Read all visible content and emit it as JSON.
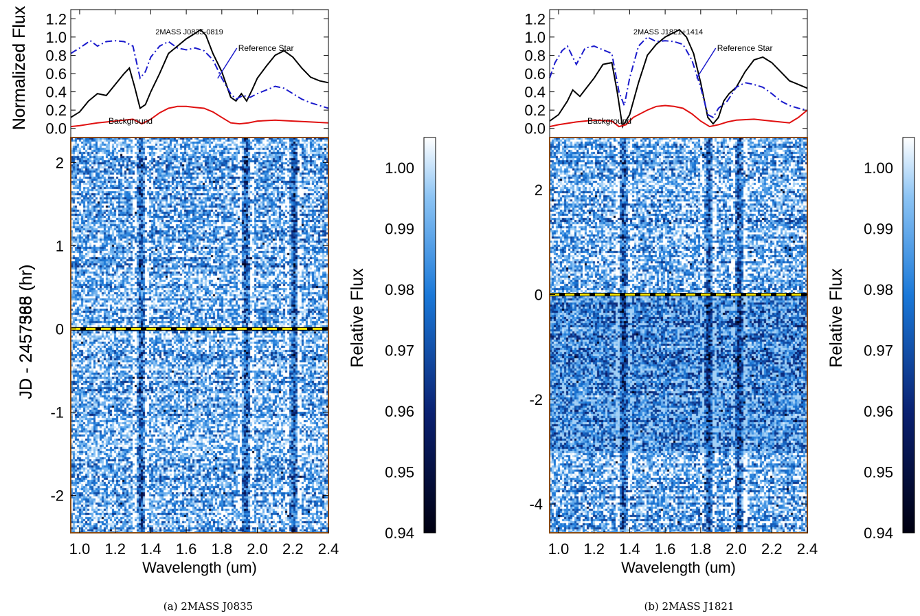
{
  "chart_data": [
    {
      "panel": "a",
      "type": "line",
      "caption": "(a) 2MASS J0835",
      "title": "2MASS J0835-0819",
      "ylabel": "Normalized Flux",
      "xlim": [
        0.95,
        2.4
      ],
      "ylim": [
        -0.1,
        1.3
      ],
      "yticks": [
        "0.0",
        "0.2",
        "0.4",
        "0.6",
        "0.8",
        "1.0",
        "1.2"
      ],
      "annotations": {
        "reference": "Reference Star",
        "background": "Background"
      },
      "colors": {
        "target": "#000000",
        "reference": "#1a1acc",
        "background": "#e01010"
      },
      "series": [
        {
          "role": "target",
          "style": "solid",
          "x": [
            0.95,
            1.0,
            1.05,
            1.1,
            1.15,
            1.2,
            1.25,
            1.28,
            1.31,
            1.34,
            1.37,
            1.4,
            1.45,
            1.5,
            1.55,
            1.6,
            1.65,
            1.68,
            1.71,
            1.75,
            1.8,
            1.85,
            1.88,
            1.91,
            1.94,
            1.97,
            2.0,
            2.05,
            2.1,
            2.15,
            2.2,
            2.25,
            2.3,
            2.35,
            2.4
          ],
          "y": [
            0.12,
            0.18,
            0.3,
            0.38,
            0.36,
            0.48,
            0.6,
            0.66,
            0.45,
            0.22,
            0.26,
            0.4,
            0.6,
            0.82,
            0.9,
            0.98,
            1.04,
            1.08,
            1.02,
            0.82,
            0.62,
            0.34,
            0.3,
            0.38,
            0.3,
            0.42,
            0.55,
            0.68,
            0.8,
            0.85,
            0.78,
            0.66,
            0.56,
            0.52,
            0.5
          ]
        },
        {
          "role": "reference",
          "style": "dashdot",
          "x": [
            0.95,
            1.0,
            1.03,
            1.06,
            1.1,
            1.15,
            1.2,
            1.25,
            1.3,
            1.34,
            1.37,
            1.4,
            1.45,
            1.5,
            1.55,
            1.6,
            1.65,
            1.7,
            1.75,
            1.8,
            1.85,
            1.88,
            1.92,
            1.96,
            2.0,
            2.05,
            2.1,
            2.15,
            2.2,
            2.25,
            2.3,
            2.35,
            2.4
          ],
          "y": [
            0.82,
            0.88,
            0.92,
            0.96,
            0.9,
            0.95,
            0.96,
            0.95,
            0.9,
            0.55,
            0.62,
            0.78,
            0.9,
            0.95,
            0.88,
            0.86,
            0.88,
            0.85,
            0.75,
            0.55,
            0.38,
            0.32,
            0.36,
            0.34,
            0.38,
            0.42,
            0.46,
            0.44,
            0.38,
            0.32,
            0.28,
            0.25,
            0.22
          ]
        },
        {
          "role": "background",
          "style": "solid",
          "x": [
            0.95,
            1.0,
            1.1,
            1.2,
            1.3,
            1.35,
            1.4,
            1.45,
            1.5,
            1.55,
            1.6,
            1.65,
            1.7,
            1.75,
            1.8,
            1.85,
            1.9,
            1.95,
            2.0,
            2.1,
            2.2,
            2.3,
            2.4
          ],
          "y": [
            0.02,
            0.03,
            0.06,
            0.08,
            0.1,
            0.05,
            0.1,
            0.17,
            0.22,
            0.24,
            0.24,
            0.23,
            0.22,
            0.18,
            0.12,
            0.06,
            0.05,
            0.06,
            0.08,
            0.09,
            0.08,
            0.07,
            0.06
          ]
        }
      ],
      "heatmap": {
        "xlabel": "Wavelength (um)",
        "ylabel": "JD -  2457388 (hr)",
        "xlim": [
          0.95,
          2.4
        ],
        "xticks": [
          "1.0",
          "1.2",
          "1.4",
          "1.6",
          "1.8",
          "2.0",
          "2.2",
          "2.4"
        ],
        "ylim": [
          -2.45,
          2.3
        ],
        "yticks": [
          "-2",
          "-1",
          "0",
          "1",
          "2"
        ],
        "zero_line": 0,
        "vmin": 0.94,
        "vmax": 1.005,
        "dark_bands": [
          1.34,
          1.93,
          2.2
        ],
        "colorbar_label": "Relative Flux",
        "colorbar_ticks": [
          "0.94",
          "0.95",
          "0.96",
          "0.97",
          "0.98",
          "0.99",
          "1.00"
        ]
      }
    },
    {
      "panel": "b",
      "type": "line",
      "caption": "(b) 2MASS J1821",
      "title": "2MASS J1821+1414",
      "ylabel": "Normalized Flux",
      "xlim": [
        0.95,
        2.4
      ],
      "ylim": [
        -0.1,
        1.3
      ],
      "yticks": [
        "0.0",
        "0.2",
        "0.4",
        "0.6",
        "0.8",
        "1.0",
        "1.2"
      ],
      "annotations": {
        "reference": "Reference Star",
        "background": "Background"
      },
      "colors": {
        "target": "#000000",
        "reference": "#1a1acc",
        "background": "#e01010"
      },
      "series": [
        {
          "role": "target",
          "style": "solid",
          "x": [
            0.95,
            1.0,
            1.05,
            1.08,
            1.12,
            1.16,
            1.2,
            1.25,
            1.3,
            1.33,
            1.36,
            1.4,
            1.45,
            1.5,
            1.55,
            1.6,
            1.65,
            1.68,
            1.72,
            1.76,
            1.8,
            1.84,
            1.87,
            1.9,
            1.93,
            1.96,
            2.0,
            2.05,
            2.1,
            2.15,
            2.2,
            2.25,
            2.3,
            2.35,
            2.4
          ],
          "y": [
            0.08,
            0.15,
            0.3,
            0.42,
            0.35,
            0.45,
            0.55,
            0.7,
            0.72,
            0.4,
            0.02,
            0.15,
            0.5,
            0.8,
            0.92,
            1.0,
            1.05,
            1.08,
            1.0,
            0.82,
            0.5,
            0.12,
            0.05,
            0.12,
            0.3,
            0.38,
            0.45,
            0.62,
            0.75,
            0.78,
            0.72,
            0.62,
            0.52,
            0.48,
            0.44
          ]
        },
        {
          "role": "reference",
          "style": "dashdot",
          "x": [
            0.95,
            0.98,
            1.02,
            1.05,
            1.1,
            1.15,
            1.2,
            1.25,
            1.3,
            1.34,
            1.37,
            1.4,
            1.45,
            1.5,
            1.55,
            1.6,
            1.65,
            1.7,
            1.75,
            1.8,
            1.84,
            1.87,
            1.9,
            1.95,
            2.0,
            2.05,
            2.1,
            2.15,
            2.2,
            2.25,
            2.3,
            2.35,
            2.4
          ],
          "y": [
            0.55,
            0.72,
            0.85,
            0.9,
            0.7,
            0.88,
            0.9,
            0.86,
            0.82,
            0.4,
            0.25,
            0.55,
            0.9,
            1.0,
            0.95,
            0.96,
            0.95,
            0.92,
            0.75,
            0.45,
            0.15,
            0.12,
            0.22,
            0.3,
            0.45,
            0.5,
            0.48,
            0.45,
            0.38,
            0.3,
            0.25,
            0.22,
            0.2
          ]
        },
        {
          "role": "background",
          "style": "solid",
          "x": [
            0.95,
            1.0,
            1.1,
            1.2,
            1.3,
            1.34,
            1.38,
            1.42,
            1.5,
            1.55,
            1.6,
            1.65,
            1.7,
            1.75,
            1.8,
            1.85,
            1.9,
            1.95,
            2.0,
            2.1,
            2.2,
            2.3,
            2.35,
            2.4
          ],
          "y": [
            0.02,
            0.04,
            0.07,
            0.09,
            0.08,
            0.02,
            0.04,
            0.12,
            0.2,
            0.24,
            0.25,
            0.24,
            0.22,
            0.16,
            0.08,
            0.02,
            0.04,
            0.07,
            0.09,
            0.1,
            0.08,
            0.06,
            0.12,
            0.2
          ]
        }
      ],
      "heatmap": {
        "xlabel": "Wavelength (um)",
        "ylabel": "JD -  2457565 (hr)",
        "xlim": [
          0.95,
          2.4
        ],
        "xticks": [
          "1.0",
          "1.2",
          "1.4",
          "1.6",
          "1.8",
          "2.0",
          "2.2",
          "2.4"
        ],
        "ylim": [
          -4.55,
          3.0
        ],
        "yticks": [
          "-4",
          "-2",
          "0",
          "2"
        ],
        "zero_line": 0,
        "vmin": 0.94,
        "vmax": 1.005,
        "dark_bands": [
          1.36,
          1.84,
          2.01
        ],
        "colorbar_label": "Relative Flux",
        "colorbar_ticks": [
          "0.94",
          "0.95",
          "0.96",
          "0.97",
          "0.98",
          "0.99",
          "1.00"
        ]
      }
    }
  ]
}
